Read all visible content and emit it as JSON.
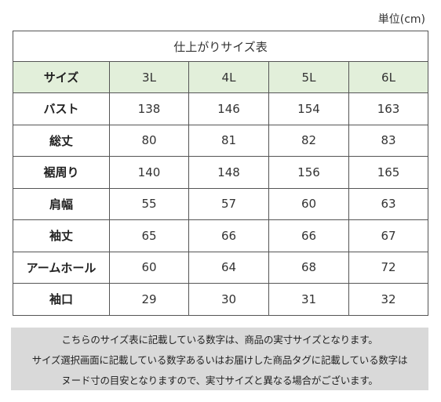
{
  "unit_label": "単位(cm)",
  "table": {
    "title": "仕上がりサイズ表",
    "header": {
      "label": "サイズ",
      "sizes": [
        "3L",
        "4L",
        "5L",
        "6L"
      ]
    },
    "rows": [
      {
        "label": "バスト",
        "values": [
          "138",
          "146",
          "154",
          "163"
        ]
      },
      {
        "label": "総丈",
        "values": [
          "80",
          "81",
          "82",
          "83"
        ]
      },
      {
        "label": "裾周り",
        "values": [
          "140",
          "148",
          "156",
          "165"
        ]
      },
      {
        "label": "肩幅",
        "values": [
          "55",
          "57",
          "60",
          "63"
        ]
      },
      {
        "label": "袖丈",
        "values": [
          "65",
          "66",
          "66",
          "67"
        ]
      },
      {
        "label": "アームホール",
        "values": [
          "60",
          "64",
          "68",
          "72"
        ]
      },
      {
        "label": "袖口",
        "values": [
          "29",
          "30",
          "31",
          "32"
        ]
      }
    ]
  },
  "note_lines": [
    "こちらのサイズ表に記載している数字は、商品の実寸サイズとなります。",
    "サイズ選択画面に記載している数字あるいはお届けした商品タグに記載している数字は",
    "ヌード寸の目安となりますので、実寸サイズと異なる場合がございます。"
  ],
  "colors": {
    "header_bg": "#e2efda",
    "note_bg": "#d9d9d9",
    "border": "#555555"
  }
}
